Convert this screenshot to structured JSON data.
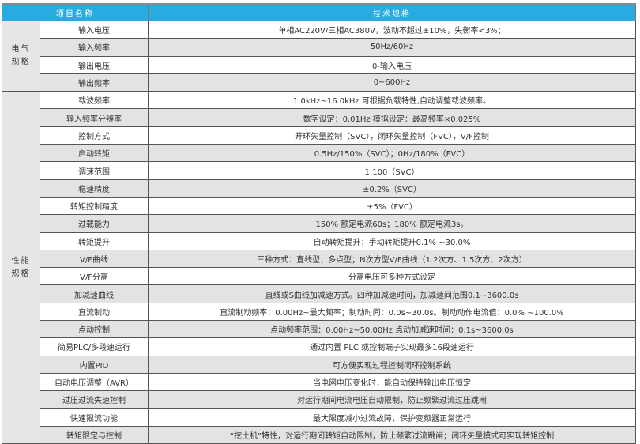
{
  "header": {
    "item_label": "项目名称",
    "spec_label": "技术规格"
  },
  "colors": {
    "header_bg": "#29abe2",
    "alt_row_bg": "#e3e3e3",
    "category_bg": "#e6e6e6"
  },
  "groups": [
    {
      "category": [
        "电气",
        "规格"
      ],
      "rows": [
        {
          "item": "输入电压",
          "spec": "单相AC220V/三相AC380V，波动不超过±10%，失衡率<3%；"
        },
        {
          "item": "输入频率",
          "spec": "50Hz/60Hz"
        },
        {
          "item": "输出电压",
          "spec": "0-输入电压"
        },
        {
          "item": "输出频率",
          "spec": "0~600Hz"
        }
      ]
    },
    {
      "category": [
        "性能",
        "规格"
      ],
      "rows": [
        {
          "item": "载波频率",
          "spec": "1.0kHz~16.0kHz 可根据负载特性,自动调整载波频率。"
        },
        {
          "item": "输入频率分辨率",
          "spec": "数字设定：0.01Hz 模拟设定：最高频率×0.025%"
        },
        {
          "item": "控制方式",
          "spec": "开环矢量控制（SVC），闭环矢量控制（FVC），V/F控制"
        },
        {
          "item": "启动转矩",
          "spec": "0.5Hz/150%（SVC）；0Hz/180%（FVC）"
        },
        {
          "item": "调速范围",
          "spec": "1:100（SVC）"
        },
        {
          "item": "稳速精度",
          "spec": "±0.2%（SVC）"
        },
        {
          "item": "转矩控制精度",
          "spec": "±5%（FVC）"
        },
        {
          "item": "过载能力",
          "spec": "150% 额定电流60s；180% 额定电流3s。"
        },
        {
          "item": "转矩提升",
          "spec": "自动转矩提升；手动转矩提升0.1% ~30.0%"
        },
        {
          "item": "V/F曲线",
          "spec": "三种方式：直线型；多点型；N次方型V/F曲线（1.2次方、1.5次方、2次方）"
        },
        {
          "item": "V/F分离",
          "spec": "分离电压可多种方式设定"
        },
        {
          "item": "加减速曲线",
          "spec": "直线或S曲线加减速方式。四种加减速时间，加减速间范围0.1~3600.0s"
        },
        {
          "item": "直流制动",
          "spec": "直流制动频率：0.00Hz~最大频率；制动时间：0.0s~30.0s。制动动作电流值：0.0% ~100.0%"
        },
        {
          "item": "点动控制",
          "spec": "点动频率范围：0.00Hz~50.00Hz 点动加减速时间：0.1s~3600.0s"
        },
        {
          "item": "简易PLC/多段速运行",
          "spec": "通过内置 PLC 或控制端子实现最多16段速运行"
        },
        {
          "item": "内置PID",
          "spec": "可方便实现过程控制闭环控制系统"
        },
        {
          "item": "自动电压调整（AVR）",
          "spec": "当电网电压变化时，能自动保持输出电压恒定"
        },
        {
          "item": "过压过流失速控制",
          "spec": "对运行期间电流电压自动限制，防止频繁过流过压跳闸"
        },
        {
          "item": "快速限流功能",
          "spec": "最大限度减小过流故障，保护变频器正常运行"
        },
        {
          "item": "转矩限定与控制",
          "spec": "“挖土机”特性，对运行期间转矩自动限制，防止频繁过流跳闸；闭环矢量模式可实现转矩控制"
        }
      ]
    }
  ]
}
